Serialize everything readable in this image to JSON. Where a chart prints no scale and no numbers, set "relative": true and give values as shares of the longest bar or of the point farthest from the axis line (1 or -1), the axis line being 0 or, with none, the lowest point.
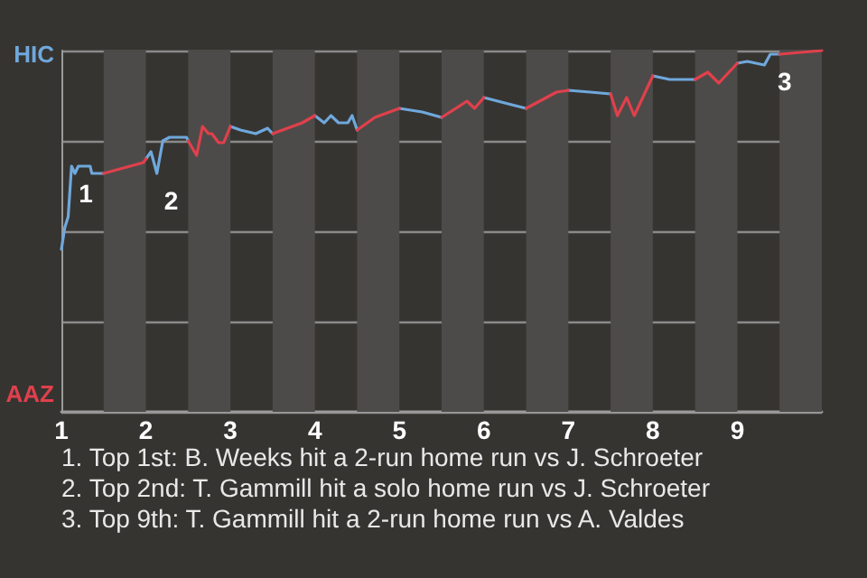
{
  "chart_data": {
    "type": "line",
    "relative": true,
    "grid": "y",
    "marker": "none",
    "line_style": "solid",
    "x": [
      1,
      1.04,
      1.08,
      1.12,
      1.16,
      1.2,
      1.34,
      1.36,
      1.5,
      1.97,
      2,
      2.06,
      2.13,
      2.2,
      2.28,
      2.48,
      2.5,
      2.6,
      2.67,
      2.74,
      2.78,
      2.86,
      2.92,
      3,
      3.12,
      3.3,
      3.44,
      3.5,
      3.85,
      4,
      4.11,
      4.19,
      4.28,
      4.39,
      4.44,
      4.5,
      4.71,
      5,
      5.27,
      5.5,
      5.8,
      5.89,
      6,
      6.33,
      6.5,
      6.86,
      7,
      7.26,
      7.5,
      7.58,
      7.69,
      7.78,
      8,
      8.2,
      8.5,
      8.65,
      8.78,
      9,
      9.12,
      9.32,
      9.39,
      9.5,
      10
    ],
    "xlim": [
      1,
      10
    ],
    "xticks": [
      1,
      2,
      3,
      4,
      5,
      6,
      7,
      8,
      9
    ],
    "series": [
      {
        "name": "HIC",
        "color": "#6fa8dc",
        "values": [
          0.45,
          0.51,
          0.54,
          0.68,
          0.66,
          0.68,
          0.68,
          0.66,
          0.66,
          null,
          0.7,
          0.72,
          0.66,
          0.75,
          0.76,
          0.76,
          0.75,
          null,
          null,
          null,
          null,
          null,
          null,
          0.79,
          0.78,
          0.77,
          0.785,
          0.77,
          null,
          0.82,
          0.8,
          0.82,
          0.8,
          0.8,
          0.82,
          0.78,
          null,
          0.84,
          0.83,
          0.815,
          null,
          null,
          0.87,
          0.85,
          0.84,
          null,
          0.89,
          0.885,
          0.88,
          null,
          null,
          null,
          0.93,
          0.92,
          0.92,
          null,
          null,
          0.965,
          0.97,
          0.96,
          0.99,
          0.99,
          null
        ]
      },
      {
        "name": "AAZ",
        "color": "#e0404c",
        "values": [
          null,
          null,
          null,
          null,
          null,
          null,
          null,
          null,
          0.66,
          0.69,
          0.7,
          null,
          null,
          null,
          null,
          null,
          0.75,
          0.71,
          0.79,
          0.77,
          0.77,
          0.745,
          0.745,
          0.79,
          null,
          null,
          null,
          0.77,
          0.8,
          0.82,
          null,
          null,
          null,
          null,
          null,
          0.78,
          0.815,
          0.84,
          null,
          0.815,
          0.86,
          0.84,
          0.87,
          null,
          0.84,
          0.885,
          0.89,
          null,
          0.88,
          0.82,
          0.87,
          0.82,
          0.93,
          null,
          0.92,
          0.94,
          0.91,
          0.965,
          null,
          null,
          null,
          0.99,
          1.0
        ]
      }
    ],
    "bands": [
      {
        "axis": "x",
        "from": 1.5,
        "to": 2,
        "color": "#4d4b49"
      },
      {
        "axis": "x",
        "from": 2.5,
        "to": 3,
        "color": "#4d4b49"
      },
      {
        "axis": "x",
        "from": 3.5,
        "to": 4,
        "color": "#4d4b49"
      },
      {
        "axis": "x",
        "from": 4.5,
        "to": 5,
        "color": "#4d4b49"
      },
      {
        "axis": "x",
        "from": 5.5,
        "to": 6,
        "color": "#4d4b49"
      },
      {
        "axis": "x",
        "from": 6.5,
        "to": 7,
        "color": "#4d4b49"
      },
      {
        "axis": "x",
        "from": 7.5,
        "to": 8,
        "color": "#4d4b49"
      },
      {
        "axis": "x",
        "from": 8.5,
        "to": 9,
        "color": "#4d4b49"
      },
      {
        "axis": "x",
        "from": 9.5,
        "to": 10,
        "color": "#4d4b49"
      }
    ],
    "annotations": [
      {
        "text": "1",
        "x": 1.12,
        "y": 0.68
      },
      {
        "text": "2",
        "x": 2.13,
        "y": 0.66
      },
      {
        "text": "3",
        "x": 9.39,
        "y": 0.99
      },
      "1. Top 1st: B. Weeks hit a 2-run home run vs J. Schroeter",
      "2. Top 2nd: T. Gammill hit a solo home run vs J. Schroeter",
      "3. Top 9th: T. Gammill hit a 2-run home run vs A. Valdes"
    ]
  }
}
